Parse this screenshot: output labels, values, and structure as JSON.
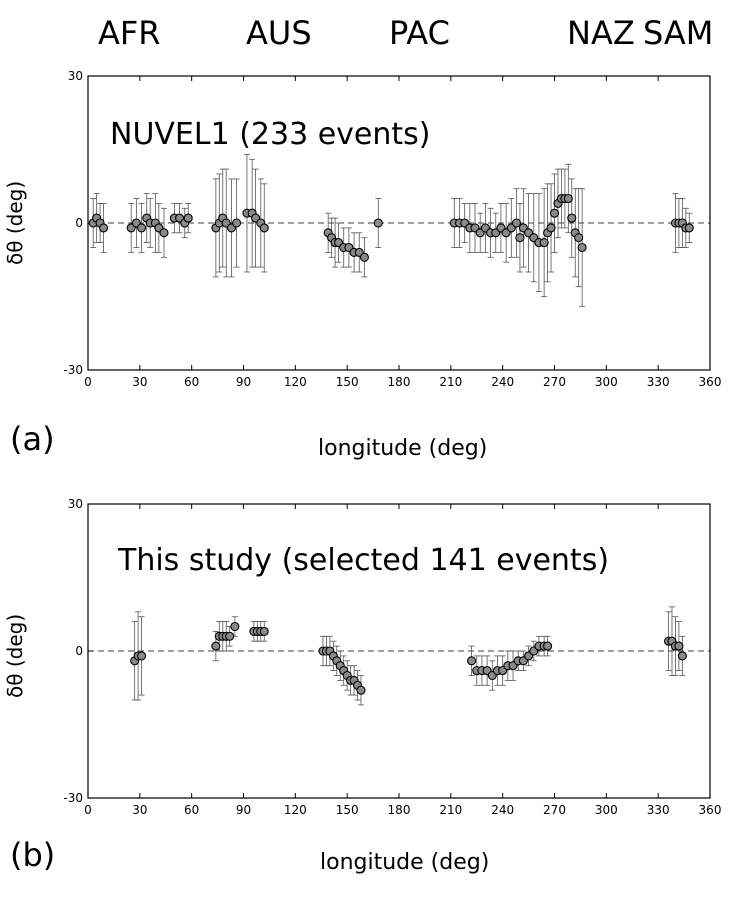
{
  "plates": [
    "AFR",
    "AUS",
    "PAC",
    "NAZ",
    "SAM"
  ],
  "panels": [
    {
      "letter": "(a)",
      "xlabel": "longitude (deg)",
      "ylabel": "δθ (deg)",
      "annotation": "NUVEL1 (233 events)"
    },
    {
      "letter": "(b)",
      "xlabel": "longitude (deg)",
      "ylabel": "δθ (deg)",
      "annotation": "This study (selected 141 events)"
    }
  ],
  "chart_data": [
    {
      "type": "scatter",
      "title": "",
      "annotation": "NUVEL1 (233 events)",
      "xlabel": "longitude (deg)",
      "ylabel": "δθ (deg)",
      "xlim": [
        0,
        360
      ],
      "ylim": [
        -30,
        30
      ],
      "xticks": [
        0,
        30,
        60,
        90,
        120,
        150,
        180,
        210,
        240,
        270,
        300,
        330,
        360
      ],
      "yticks": [
        -30,
        0,
        30
      ],
      "reference_line": 0,
      "error_bars": true,
      "points": [
        {
          "x": 3,
          "y": 0,
          "err": 5
        },
        {
          "x": 5,
          "y": 1,
          "err": 5
        },
        {
          "x": 7,
          "y": 0,
          "err": 4
        },
        {
          "x": 9,
          "y": -1,
          "err": 5
        },
        {
          "x": 25,
          "y": -1,
          "err": 5
        },
        {
          "x": 28,
          "y": 0,
          "err": 5
        },
        {
          "x": 31,
          "y": -1,
          "err": 5
        },
        {
          "x": 34,
          "y": 1,
          "err": 5
        },
        {
          "x": 36,
          "y": 0,
          "err": 5
        },
        {
          "x": 39,
          "y": 0,
          "err": 6
        },
        {
          "x": 41,
          "y": -1,
          "err": 5
        },
        {
          "x": 44,
          "y": -2,
          "err": 5
        },
        {
          "x": 50,
          "y": 1,
          "err": 3
        },
        {
          "x": 53,
          "y": 1,
          "err": 3
        },
        {
          "x": 56,
          "y": 0,
          "err": 3
        },
        {
          "x": 58,
          "y": 1,
          "err": 3
        },
        {
          "x": 74,
          "y": -1,
          "err": 10
        },
        {
          "x": 76,
          "y": 0,
          "err": 10
        },
        {
          "x": 78,
          "y": 1,
          "err": 10
        },
        {
          "x": 80,
          "y": 0,
          "err": 11
        },
        {
          "x": 83,
          "y": -1,
          "err": 10
        },
        {
          "x": 86,
          "y": 0,
          "err": 9
        },
        {
          "x": 92,
          "y": 2,
          "err": 12
        },
        {
          "x": 95,
          "y": 2,
          "err": 11
        },
        {
          "x": 97,
          "y": 1,
          "err": 10
        },
        {
          "x": 100,
          "y": 0,
          "err": 9
        },
        {
          "x": 102,
          "y": -1,
          "err": 9
        },
        {
          "x": 139,
          "y": -2,
          "err": 4
        },
        {
          "x": 141,
          "y": -3,
          "err": 4
        },
        {
          "x": 143,
          "y": -4,
          "err": 5
        },
        {
          "x": 145,
          "y": -4,
          "err": 4
        },
        {
          "x": 148,
          "y": -5,
          "err": 4
        },
        {
          "x": 151,
          "y": -5,
          "err": 4
        },
        {
          "x": 154,
          "y": -6,
          "err": 4
        },
        {
          "x": 157,
          "y": -6,
          "err": 4
        },
        {
          "x": 160,
          "y": -7,
          "err": 4
        },
        {
          "x": 168,
          "y": 0,
          "err": 5
        },
        {
          "x": 212,
          "y": 0,
          "err": 5
        },
        {
          "x": 215,
          "y": 0,
          "err": 5
        },
        {
          "x": 218,
          "y": 0,
          "err": 4
        },
        {
          "x": 221,
          "y": -1,
          "err": 5
        },
        {
          "x": 224,
          "y": -1,
          "err": 5
        },
        {
          "x": 227,
          "y": -2,
          "err": 4
        },
        {
          "x": 230,
          "y": -1,
          "err": 5
        },
        {
          "x": 233,
          "y": -2,
          "err": 5
        },
        {
          "x": 236,
          "y": -2,
          "err": 4
        },
        {
          "x": 239,
          "y": -1,
          "err": 5
        },
        {
          "x": 242,
          "y": -2,
          "err": 6
        },
        {
          "x": 245,
          "y": -1,
          "err": 6
        },
        {
          "x": 248,
          "y": 0,
          "err": 7
        },
        {
          "x": 250,
          "y": -3,
          "err": 7
        },
        {
          "x": 252,
          "y": -1,
          "err": 8
        },
        {
          "x": 255,
          "y": -2,
          "err": 8
        },
        {
          "x": 258,
          "y": -3,
          "err": 9
        },
        {
          "x": 261,
          "y": -4,
          "err": 10
        },
        {
          "x": 264,
          "y": -4,
          "err": 11
        },
        {
          "x": 266,
          "y": -2,
          "err": 10
        },
        {
          "x": 268,
          "y": -1,
          "err": 9
        },
        {
          "x": 270,
          "y": 2,
          "err": 8
        },
        {
          "x": 272,
          "y": 4,
          "err": 7
        },
        {
          "x": 274,
          "y": 5,
          "err": 6
        },
        {
          "x": 276,
          "y": 5,
          "err": 6
        },
        {
          "x": 278,
          "y": 5,
          "err": 7
        },
        {
          "x": 280,
          "y": 1,
          "err": 8
        },
        {
          "x": 282,
          "y": -2,
          "err": 9
        },
        {
          "x": 284,
          "y": -3,
          "err": 10
        },
        {
          "x": 286,
          "y": -5,
          "err": 12
        },
        {
          "x": 340,
          "y": 0,
          "err": 6
        },
        {
          "x": 342,
          "y": 0,
          "err": 5
        },
        {
          "x": 344,
          "y": 0,
          "err": 5
        },
        {
          "x": 346,
          "y": -1,
          "err": 4
        },
        {
          "x": 348,
          "y": -1,
          "err": 3
        }
      ]
    },
    {
      "type": "scatter",
      "title": "",
      "annotation": "This study (selected 141 events)",
      "xlabel": "longitude (deg)",
      "ylabel": "δθ (deg)",
      "xlim": [
        0,
        360
      ],
      "ylim": [
        -30,
        30
      ],
      "xticks": [
        0,
        30,
        60,
        90,
        120,
        150,
        180,
        210,
        240,
        270,
        300,
        330,
        360
      ],
      "yticks": [
        -30,
        0,
        30
      ],
      "reference_line": 0,
      "error_bars": true,
      "points": [
        {
          "x": 27,
          "y": -2,
          "err": 8
        },
        {
          "x": 29,
          "y": -1,
          "err": 9
        },
        {
          "x": 31,
          "y": -1,
          "err": 8
        },
        {
          "x": 74,
          "y": 1,
          "err": 3
        },
        {
          "x": 76,
          "y": 3,
          "err": 3
        },
        {
          "x": 78,
          "y": 3,
          "err": 3
        },
        {
          "x": 80,
          "y": 3,
          "err": 3
        },
        {
          "x": 82,
          "y": 3,
          "err": 2
        },
        {
          "x": 85,
          "y": 5,
          "err": 2
        },
        {
          "x": 96,
          "y": 4,
          "err": 2
        },
        {
          "x": 98,
          "y": 4,
          "err": 2
        },
        {
          "x": 100,
          "y": 4,
          "err": 2
        },
        {
          "x": 102,
          "y": 4,
          "err": 2
        },
        {
          "x": 136,
          "y": 0,
          "err": 3
        },
        {
          "x": 138,
          "y": 0,
          "err": 3
        },
        {
          "x": 140,
          "y": 0,
          "err": 3
        },
        {
          "x": 142,
          "y": -1,
          "err": 3
        },
        {
          "x": 144,
          "y": -2,
          "err": 3
        },
        {
          "x": 146,
          "y": -3,
          "err": 3
        },
        {
          "x": 148,
          "y": -4,
          "err": 3
        },
        {
          "x": 150,
          "y": -5,
          "err": 3
        },
        {
          "x": 152,
          "y": -6,
          "err": 3
        },
        {
          "x": 154,
          "y": -6,
          "err": 3
        },
        {
          "x": 156,
          "y": -7,
          "err": 3
        },
        {
          "x": 158,
          "y": -8,
          "err": 3
        },
        {
          "x": 222,
          "y": -2,
          "err": 3
        },
        {
          "x": 225,
          "y": -4,
          "err": 3
        },
        {
          "x": 228,
          "y": -4,
          "err": 3
        },
        {
          "x": 231,
          "y": -4,
          "err": 3
        },
        {
          "x": 234,
          "y": -5,
          "err": 3
        },
        {
          "x": 237,
          "y": -4,
          "err": 3
        },
        {
          "x": 240,
          "y": -4,
          "err": 3
        },
        {
          "x": 243,
          "y": -3,
          "err": 3
        },
        {
          "x": 246,
          "y": -3,
          "err": 3
        },
        {
          "x": 249,
          "y": -2,
          "err": 2
        },
        {
          "x": 252,
          "y": -2,
          "err": 2
        },
        {
          "x": 255,
          "y": -1,
          "err": 2
        },
        {
          "x": 258,
          "y": 0,
          "err": 2
        },
        {
          "x": 261,
          "y": 1,
          "err": 2
        },
        {
          "x": 264,
          "y": 1,
          "err": 2
        },
        {
          "x": 266,
          "y": 1,
          "err": 2
        },
        {
          "x": 336,
          "y": 2,
          "err": 6
        },
        {
          "x": 338,
          "y": 2,
          "err": 7
        },
        {
          "x": 340,
          "y": 1,
          "err": 6
        },
        {
          "x": 342,
          "y": 1,
          "err": 5
        },
        {
          "x": 344,
          "y": -1,
          "err": 4
        }
      ]
    }
  ]
}
